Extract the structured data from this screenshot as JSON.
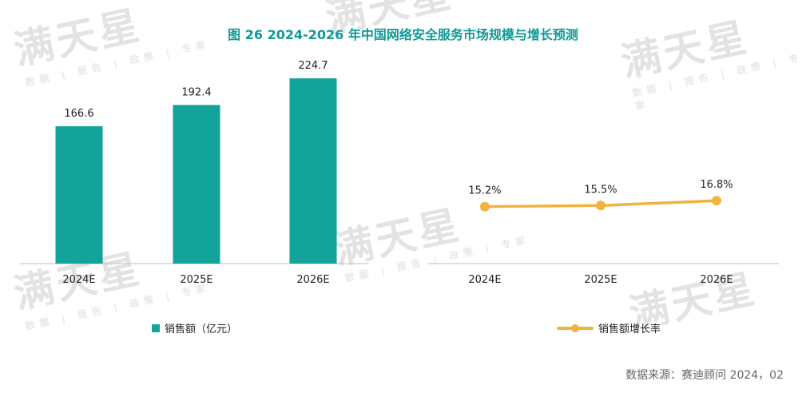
{
  "title": "图 26  2024-2026 年中国网络安全服务市场规模与增长预测",
  "source": "数据来源：赛迪顾问  2024，02",
  "watermark": {
    "text": "满天星",
    "subtext": "数据 | 报告 | 政策 | 专家"
  },
  "colors": {
    "bar": "#12a39b",
    "line": "#f1b33f",
    "title": "#0f9a96"
  },
  "chart_data": [
    {
      "type": "bar",
      "categories": [
        "2024E",
        "2025E",
        "2026E"
      ],
      "series": [
        {
          "name": "销售额（亿元）",
          "values": [
            166.6,
            192.4,
            224.7
          ]
        }
      ],
      "value_labels": [
        "166.6",
        "192.4",
        "224.7"
      ],
      "ylim": [
        0,
        250
      ],
      "legend": "bottom-left",
      "grid": false
    },
    {
      "type": "line",
      "categories": [
        "2024E",
        "2025E",
        "2026E"
      ],
      "series": [
        {
          "name": "销售额增长率",
          "values": [
            15.2,
            15.5,
            16.8
          ]
        }
      ],
      "value_labels": [
        "15.2%",
        "15.5%",
        "16.8%"
      ],
      "ylim": [
        0,
        55
      ],
      "legend": "bottom-center",
      "grid": false
    }
  ]
}
